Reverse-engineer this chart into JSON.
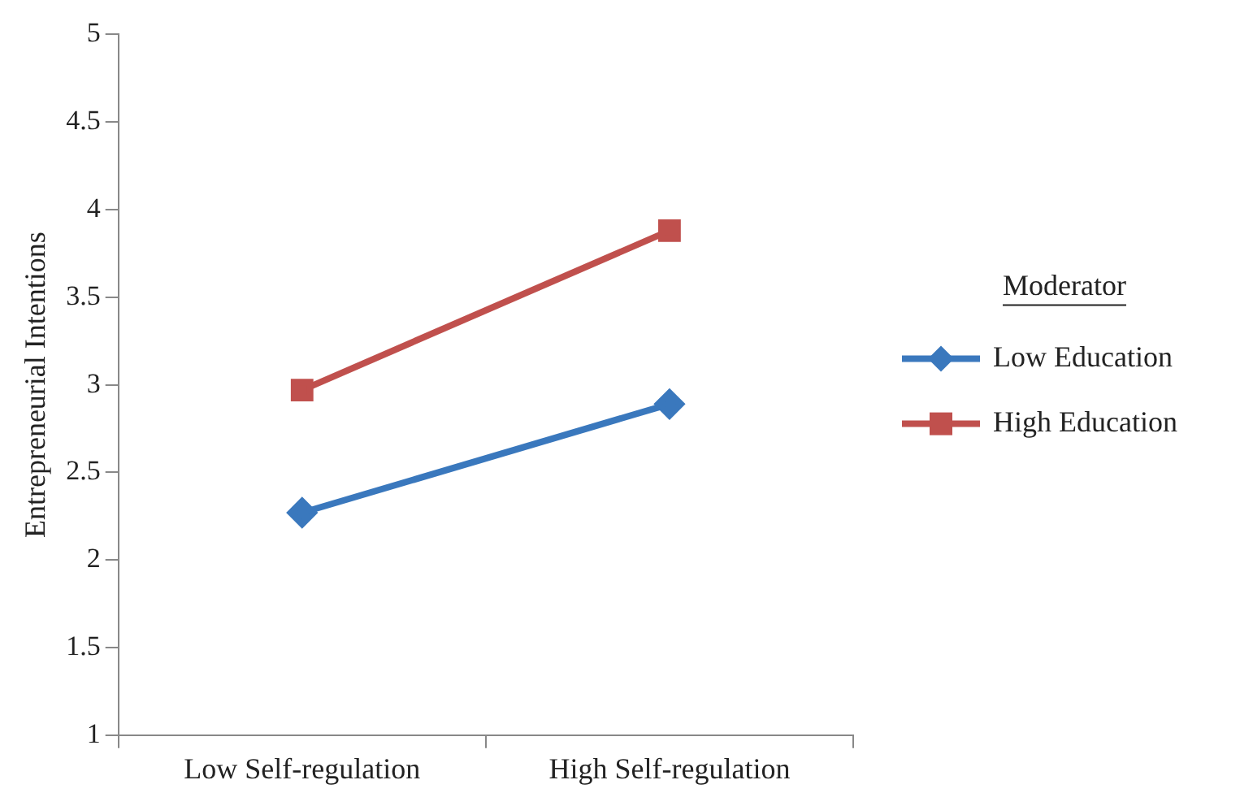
{
  "chart_data": {
    "type": "line",
    "ylabel": "Entrepreneurial Intentions",
    "legend_title": "Moderator",
    "categories": [
      "Low Self-regulation",
      "High Self-regulation"
    ],
    "series": [
      {
        "name": "Low Education",
        "color": "#3a78bd",
        "marker": "diamond",
        "values": [
          2.27,
          2.89
        ]
      },
      {
        "name": "High Education",
        "color": "#c0504d",
        "marker": "square",
        "values": [
          2.97,
          3.88
        ]
      }
    ],
    "ylim": [
      1,
      5
    ],
    "yticks": [
      1,
      1.5,
      2,
      2.5,
      3,
      3.5,
      4,
      4.5,
      5
    ],
    "grid": false,
    "legend": "right",
    "line_style": "solid"
  }
}
